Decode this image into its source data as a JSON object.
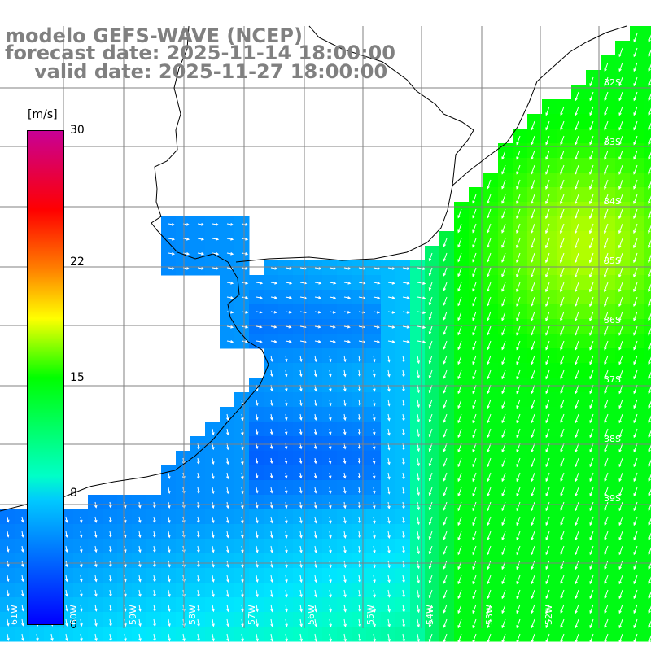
{
  "title": {
    "line1": "modelo GEFS-WAVE (NCEP)",
    "line2": "forecast date: 2025-11-14 18:00:00",
    "line3": "valid date: 2025-11-27 18:00:00"
  },
  "colorbar": {
    "unit": "[m/s]",
    "min": 0,
    "max": 30,
    "ticks": [
      {
        "value": 0,
        "label": "0"
      },
      {
        "value": 8,
        "label": "8"
      },
      {
        "value": 15,
        "label": "15"
      },
      {
        "value": 22,
        "label": "22"
      },
      {
        "value": 30,
        "label": "30"
      }
    ],
    "stops": [
      "#0000ff",
      "#00c8ff",
      "#00ffc8",
      "#00ff00",
      "#ffff00",
      "#ff8000",
      "#ff0000",
      "#c80096"
    ]
  },
  "grid": {
    "lat_labels": [
      "32S",
      "33S",
      "34S",
      "35S",
      "36S",
      "37S",
      "38S",
      "39S"
    ],
    "lon_labels": [
      "61W",
      "60W",
      "59W",
      "58W",
      "57W",
      "56W",
      "55W",
      "54W",
      "53W",
      "52W"
    ]
  },
  "colors": {
    "land": "#ffffff",
    "coast": "#000000",
    "gridline": "#808080",
    "vector": "#ffffff",
    "title": "#808080"
  }
}
